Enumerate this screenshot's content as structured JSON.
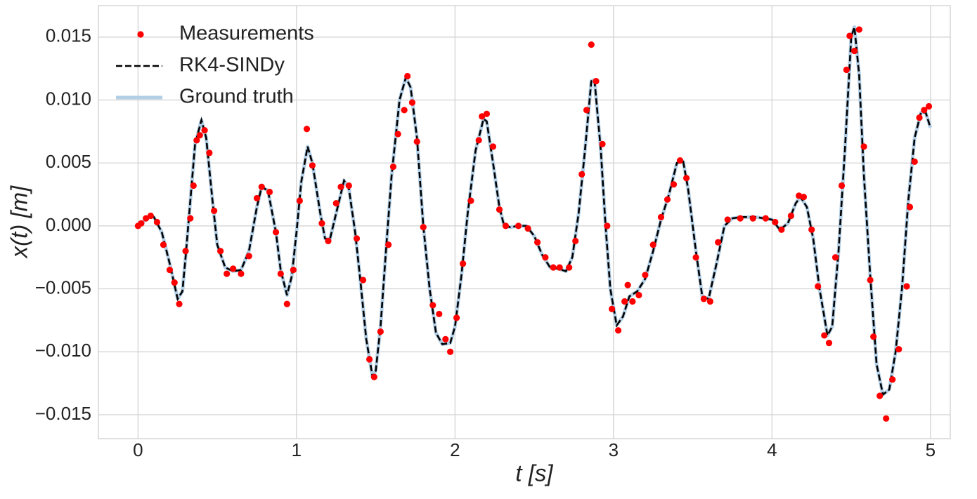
{
  "chart_data": {
    "type": "line",
    "x_label": "t [s]",
    "y_label": "x(t) [m]",
    "xlim": [
      -0.25,
      5.125
    ],
    "ylim": [
      -0.0169,
      0.0175
    ],
    "xticks": [
      0,
      1,
      2,
      3,
      4,
      5
    ],
    "yticks": [
      {
        "value": -0.015,
        "label": "−0.015"
      },
      {
        "value": -0.01,
        "label": "−0.010"
      },
      {
        "value": -0.005,
        "label": "−0.005"
      },
      {
        "value": 0,
        "label": "0.000"
      },
      0.005,
      {
        "value": 0.01,
        "label": "0.010"
      },
      0.015
    ],
    "grid": true,
    "legend": "upper left",
    "series": [
      {
        "name": "Measurements",
        "type": "scatter",
        "color": "#ff0000",
        "x": [
          0,
          0.02,
          0.05,
          0.08,
          0.12,
          0.16,
          0.2,
          0.23,
          0.26,
          0.3,
          0.33,
          0.35,
          0.37,
          0.39,
          0.42,
          0.45,
          0.48,
          0.52,
          0.56,
          0.6,
          0.65,
          0.7,
          0.75,
          0.78,
          0.83,
          0.87,
          0.9,
          0.94,
          0.98,
          1.02,
          1.065,
          1.1,
          1.16,
          1.2,
          1.25,
          1.28,
          1.33,
          1.38,
          1.42,
          1.46,
          1.49,
          1.53,
          1.58,
          1.61,
          1.64,
          1.68,
          1.7,
          1.73,
          1.76,
          1.8,
          1.86,
          1.9,
          1.94,
          1.97,
          2.01,
          2.05,
          2.1,
          2.15,
          2.17,
          2.2,
          2.24,
          2.28,
          2.32,
          2.4,
          2.46,
          2.52,
          2.57,
          2.62,
          2.66,
          2.72,
          2.76,
          2.8,
          2.83,
          2.86,
          2.89,
          2.93,
          2.96,
          2.99,
          3.03,
          3.07,
          3.09,
          3.12,
          3.16,
          3.2,
          3.25,
          3.3,
          3.34,
          3.38,
          3.42,
          3.46,
          3.52,
          3.57,
          3.61,
          3.66,
          3.72,
          3.8,
          3.88,
          3.96,
          4.02,
          4.06,
          4.12,
          4.17,
          4.2,
          4.25,
          4.29,
          4.33,
          4.36,
          4.4,
          4.44,
          4.47,
          4.49,
          4.52,
          4.55,
          4.58,
          4.62,
          4.64,
          4.68,
          4.72,
          4.76,
          4.8,
          4.85,
          4.87,
          4.9,
          4.93,
          4.96,
          4.99
        ],
        "values": [
          0,
          0.0002,
          0.0006,
          0.0008,
          0.0003,
          -0.0015,
          -0.0035,
          -0.0045,
          -0.0062,
          -0.002,
          0.0006,
          0.0032,
          0.0068,
          0.0072,
          0.0076,
          0.0058,
          0.0012,
          -0.002,
          -0.0038,
          -0.0034,
          -0.0038,
          -0.0024,
          0.0022,
          0.0031,
          0.0027,
          -0.0005,
          -0.0038,
          -0.0062,
          -0.0035,
          0.002,
          0.0077,
          0.0048,
          0.0002,
          -0.0012,
          0.0018,
          0.0031,
          0.0032,
          -0.001,
          -0.0043,
          -0.0106,
          -0.012,
          -0.0084,
          -0.0015,
          0.0047,
          0.0073,
          0.0092,
          0.0119,
          0.0098,
          0.0067,
          -0.0001,
          -0.0063,
          -0.007,
          -0.009,
          -0.01,
          -0.0073,
          -0.003,
          0.002,
          0.0068,
          0.0087,
          0.0089,
          0.0063,
          0.0013,
          0,
          0,
          -0.0002,
          -0.0013,
          -0.0025,
          -0.0033,
          -0.0033,
          -0.0033,
          -0.0012,
          0.0041,
          0.0092,
          0.0144,
          0.0115,
          0.0065,
          0,
          -0.0066,
          -0.0083,
          -0.006,
          -0.0047,
          -0.006,
          -0.0055,
          -0.0039,
          -0.0015,
          0.0007,
          0.0021,
          0.0033,
          0.0052,
          0.0038,
          -0.0025,
          -0.0058,
          -0.006,
          -0.0013,
          0.0005,
          0.0006,
          0.0006,
          0.0006,
          0.0003,
          -0.0003,
          0.0008,
          0.0024,
          0.0023,
          -0.0003,
          -0.0048,
          -0.0087,
          -0.0093,
          -0.0025,
          0.0032,
          0.0124,
          0.0151,
          0.0139,
          0.0156,
          0.0063,
          -0.0043,
          -0.0088,
          -0.0135,
          -0.0153,
          -0.0122,
          -0.0098,
          -0.0048,
          0.0015,
          0.0051,
          0.0086,
          0.0092,
          0.0095
        ]
      },
      {
        "name": "RK4-SINDy",
        "type": "dashed",
        "color": "#000000",
        "x": [
          0,
          0.05,
          0.08,
          0.1,
          0.15,
          0.2,
          0.25,
          0.28,
          0.3,
          0.33,
          0.36,
          0.4,
          0.43,
          0.47,
          0.5,
          0.55,
          0.6,
          0.65,
          0.7,
          0.75,
          0.78,
          0.82,
          0.87,
          0.9,
          0.94,
          0.97,
          1,
          1.03,
          1.07,
          1.1,
          1.15,
          1.18,
          1.21,
          1.25,
          1.3,
          1.33,
          1.37,
          1.4,
          1.44,
          1.48,
          1.5,
          1.53,
          1.57,
          1.6,
          1.65,
          1.69,
          1.72,
          1.76,
          1.8,
          1.84,
          1.88,
          1.92,
          1.97,
          2,
          2.04,
          2.08,
          2.13,
          2.18,
          2.2,
          2.24,
          2.28,
          2.31,
          2.35,
          2.4,
          2.45,
          2.5,
          2.55,
          2.6,
          2.65,
          2.7,
          2.74,
          2.78,
          2.82,
          2.86,
          2.88,
          2.92,
          2.95,
          2.98,
          3.02,
          3.06,
          3.1,
          3.15,
          3.2,
          3.25,
          3.3,
          3.35,
          3.4,
          3.44,
          3.47,
          3.52,
          3.56,
          3.6,
          3.65,
          3.7,
          3.75,
          3.8,
          3.9,
          4,
          4.05,
          4.1,
          4.15,
          4.18,
          4.22,
          4.26,
          4.3,
          4.35,
          4.38,
          4.42,
          4.46,
          4.5,
          4.52,
          4.55,
          4.58,
          4.62,
          4.66,
          4.7,
          4.74,
          4.78,
          4.82,
          4.86,
          4.9,
          4.94,
          4.97,
          5
        ],
        "values": [
          0,
          0.0005,
          0.0008,
          0.0007,
          -0.0005,
          -0.003,
          -0.0058,
          -0.0052,
          -0.0025,
          0.002,
          0.0065,
          0.0084,
          0.007,
          0.002,
          -0.0015,
          -0.0033,
          -0.0036,
          -0.0035,
          -0.002,
          0.0015,
          0.0031,
          0.0028,
          -0.0005,
          -0.0035,
          -0.0055,
          -0.004,
          -0.0005,
          0.0035,
          0.0063,
          0.005,
          0.001,
          -0.001,
          -0.0011,
          0.001,
          0.0036,
          0.003,
          -0.0005,
          -0.004,
          -0.009,
          -0.012,
          -0.0115,
          -0.008,
          -0.001,
          0.004,
          0.01,
          0.0118,
          0.011,
          0.007,
          0,
          -0.005,
          -0.0085,
          -0.0094,
          -0.0093,
          -0.008,
          -0.004,
          0.001,
          0.006,
          0.0085,
          0.0083,
          0.005,
          0.0015,
          0,
          -0.0001,
          0,
          0,
          -0.0008,
          -0.0023,
          -0.0033,
          -0.0034,
          -0.0036,
          -0.0025,
          0.001,
          0.006,
          0.0115,
          0.0116,
          0.006,
          0,
          -0.005,
          -0.0079,
          -0.0072,
          -0.0056,
          -0.0052,
          -0.0042,
          -0.002,
          0.0005,
          0.0025,
          0.005,
          0.0051,
          0.003,
          -0.002,
          -0.0056,
          -0.0058,
          -0.003,
          0,
          0.0006,
          0.0007,
          0.0007,
          0.0005,
          -0.0003,
          0.0002,
          0.0018,
          0.0023,
          0.0015,
          -0.001,
          -0.005,
          -0.0087,
          -0.008,
          -0.002,
          0.006,
          0.015,
          0.0158,
          0.012,
          0.004,
          -0.004,
          -0.011,
          -0.0134,
          -0.013,
          -0.01,
          -0.005,
          0.002,
          0.007,
          0.009,
          0.009,
          0.0078
        ]
      },
      {
        "name": "Ground truth",
        "type": "thick",
        "color": "#b3cfe6",
        "x": [
          0,
          0.05,
          0.08,
          0.1,
          0.15,
          0.2,
          0.25,
          0.28,
          0.3,
          0.33,
          0.36,
          0.4,
          0.43,
          0.47,
          0.5,
          0.55,
          0.6,
          0.65,
          0.7,
          0.75,
          0.78,
          0.82,
          0.87,
          0.9,
          0.94,
          0.97,
          1,
          1.03,
          1.07,
          1.1,
          1.15,
          1.18,
          1.21,
          1.25,
          1.3,
          1.33,
          1.37,
          1.4,
          1.44,
          1.48,
          1.5,
          1.53,
          1.57,
          1.6,
          1.65,
          1.69,
          1.72,
          1.76,
          1.8,
          1.84,
          1.88,
          1.92,
          1.97,
          2,
          2.04,
          2.08,
          2.13,
          2.18,
          2.2,
          2.24,
          2.28,
          2.31,
          2.35,
          2.4,
          2.45,
          2.5,
          2.55,
          2.6,
          2.65,
          2.7,
          2.74,
          2.78,
          2.82,
          2.86,
          2.88,
          2.92,
          2.95,
          2.98,
          3.02,
          3.06,
          3.1,
          3.15,
          3.2,
          3.25,
          3.3,
          3.35,
          3.4,
          3.44,
          3.47,
          3.52,
          3.56,
          3.6,
          3.65,
          3.7,
          3.75,
          3.8,
          3.9,
          4,
          4.05,
          4.1,
          4.15,
          4.18,
          4.22,
          4.26,
          4.3,
          4.35,
          4.38,
          4.42,
          4.46,
          4.5,
          4.52,
          4.55,
          4.58,
          4.62,
          4.66,
          4.7,
          4.74,
          4.78,
          4.82,
          4.86,
          4.9,
          4.94,
          4.97,
          5
        ],
        "values": [
          0,
          0.0005,
          0.0008,
          0.0007,
          -0.0005,
          -0.003,
          -0.0058,
          -0.0052,
          -0.0025,
          0.002,
          0.0065,
          0.0084,
          0.007,
          0.002,
          -0.0015,
          -0.0033,
          -0.0036,
          -0.0035,
          -0.002,
          0.0015,
          0.0031,
          0.0028,
          -0.0005,
          -0.0035,
          -0.0055,
          -0.004,
          -0.0005,
          0.0035,
          0.0063,
          0.005,
          0.001,
          -0.001,
          -0.0011,
          0.001,
          0.0036,
          0.003,
          -0.0005,
          -0.004,
          -0.009,
          -0.012,
          -0.0115,
          -0.008,
          -0.001,
          0.004,
          0.01,
          0.0118,
          0.011,
          0.007,
          0,
          -0.005,
          -0.0085,
          -0.0094,
          -0.0093,
          -0.008,
          -0.004,
          0.001,
          0.006,
          0.0085,
          0.0083,
          0.005,
          0.0015,
          0,
          -0.0001,
          0,
          0,
          -0.0008,
          -0.0023,
          -0.0033,
          -0.0034,
          -0.0036,
          -0.0025,
          0.001,
          0.006,
          0.0115,
          0.0116,
          0.006,
          0,
          -0.005,
          -0.0079,
          -0.0072,
          -0.0056,
          -0.0052,
          -0.0042,
          -0.002,
          0.0005,
          0.0025,
          0.005,
          0.0051,
          0.003,
          -0.002,
          -0.0056,
          -0.0058,
          -0.003,
          0,
          0.0006,
          0.0007,
          0.0007,
          0.0005,
          -0.0003,
          0.0002,
          0.0018,
          0.0023,
          0.0015,
          -0.001,
          -0.005,
          -0.0087,
          -0.008,
          -0.002,
          0.006,
          0.015,
          0.0158,
          0.012,
          0.004,
          -0.004,
          -0.011,
          -0.0134,
          -0.013,
          -0.01,
          -0.005,
          0.002,
          0.007,
          0.009,
          0.009,
          0.0078
        ]
      }
    ]
  }
}
